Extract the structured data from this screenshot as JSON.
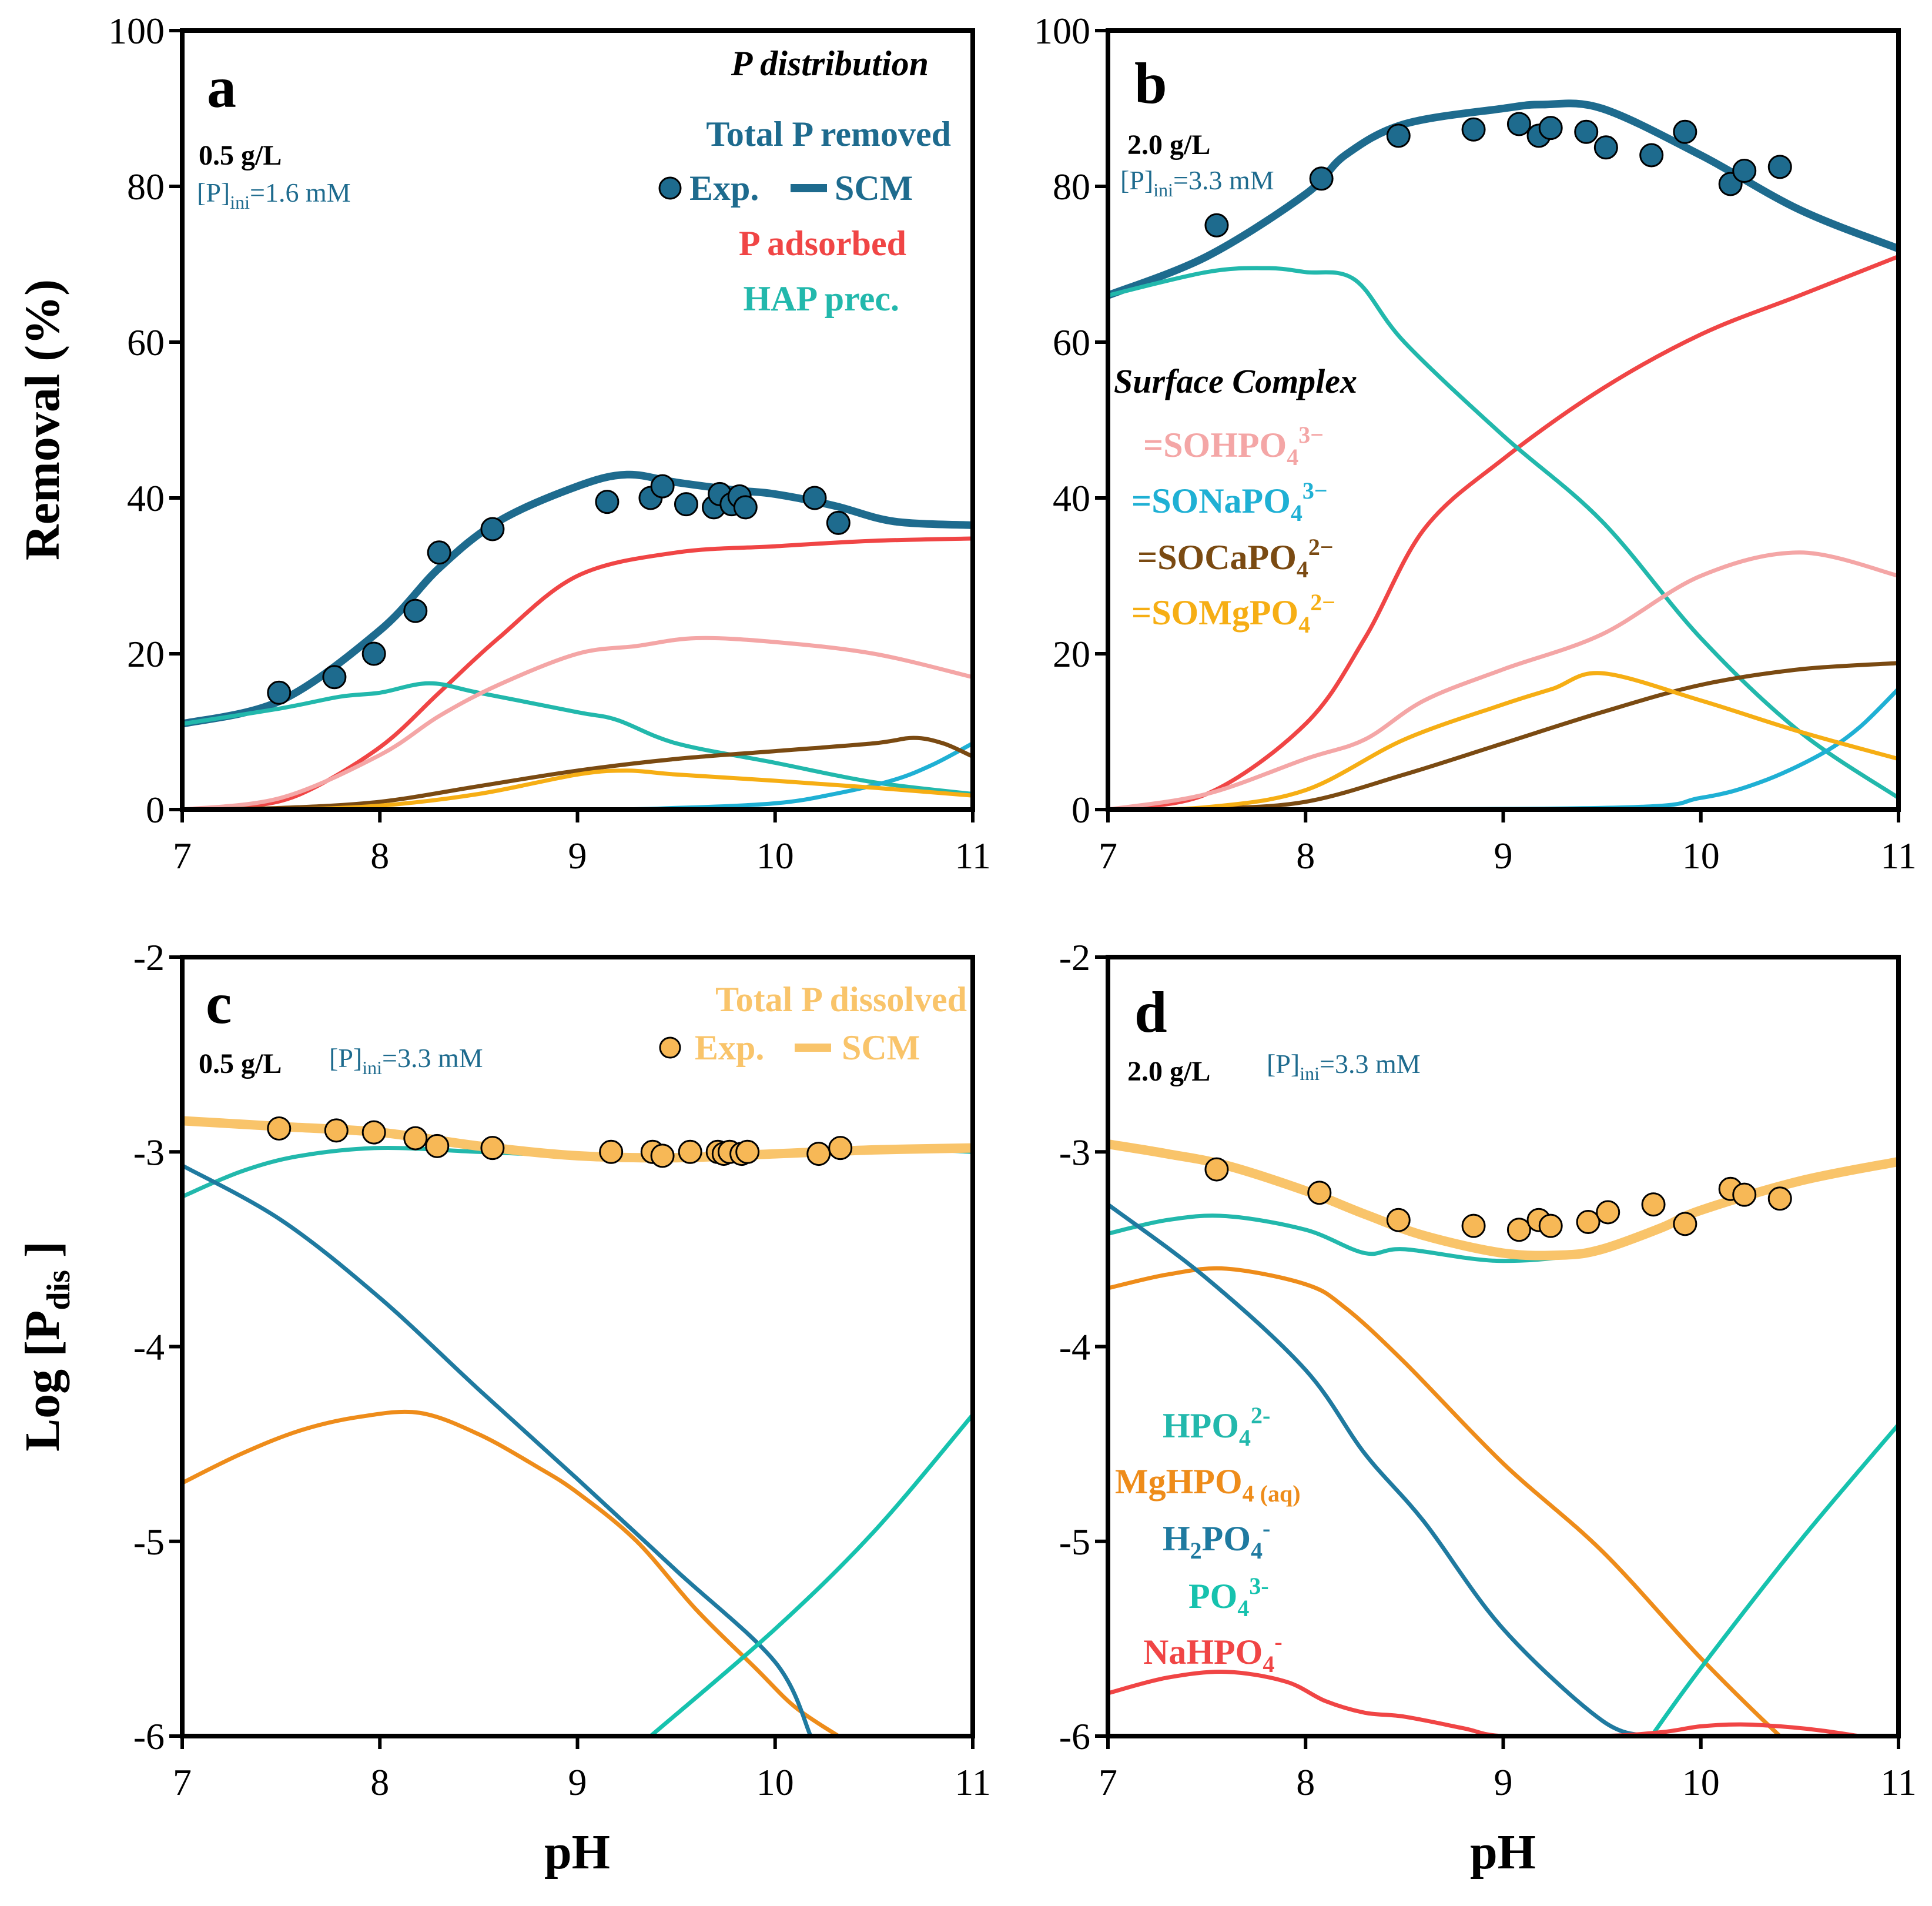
{
  "colors": {
    "total_p": "#1e6b8e",
    "adsorbed": "#f04545",
    "hap": "#22b8ac",
    "sohpo4": "#f4a6a6",
    "sonapo4": "#1fb0d4",
    "socapo4": "#7a4a12",
    "somgpo4": "#f6ae14",
    "dissolved": "#f9c46a",
    "dissolved_marker": "#f7b856",
    "hpo4": "#22b8ac",
    "mghpo4": "#ee8c1a",
    "h2po4": "#1f7aa0",
    "po4": "#16c2ae",
    "nahpo4": "#f04545",
    "ini_text": "#1e6b8e"
  },
  "labels": {
    "removal_axis": "Removal (%)",
    "log_axis_main": "Log [P",
    "log_axis_sub": "dis",
    "log_axis_end": " ]",
    "ph_axis": "pH",
    "pdist_title": "P distribution",
    "total_removed": "Total P removed",
    "exp": "Exp.",
    "scm": "SCM",
    "p_adsorbed": "P adsorbed",
    "hap_prec": "HAP prec.",
    "surface_complex": "Surface Complex",
    "sc1_a": "=SOHPO",
    "sc1_b": "4",
    "sc1_c": "3−",
    "sc2_a": "=SONaPO",
    "sc2_b": "4",
    "sc2_c": "3−",
    "sc3_a": "=SOCaPO",
    "sc3_b": "4",
    "sc3_c": "2−",
    "sc4_a": "=SOMgPO",
    "sc4_b": "4",
    "sc4_c": "2−",
    "total_dissolved": "Total P dissolved",
    "sp1_a": "HPO",
    "sp1_b": "4",
    "sp1_c": "2-",
    "sp2_a": "MgHPO",
    "sp2_b": "4 (aq)",
    "sp3_a": "H",
    "sp3_b": "2",
    "sp3_c": "PO",
    "sp3_d": "4",
    "sp3_e": "-",
    "sp4_a": "PO",
    "sp4_b": "4",
    "sp4_c": "3-",
    "sp5_a": "NaHPO",
    "sp5_b": "4",
    "sp5_c": "-",
    "ini_p": "[P]",
    "ini_sub": "ini"
  },
  "chart_data": [
    {
      "id": "a",
      "type": "line",
      "letter": "a",
      "dose": "0.5 g/L",
      "p_ini_value": "=1.6 mM",
      "xlabel": "",
      "ylabel": "Removal (%)",
      "xlim": [
        7,
        11
      ],
      "ylim": [
        0,
        100
      ],
      "xticks": [
        "7",
        "8",
        "9",
        "10",
        "11"
      ],
      "yticks": [
        "0",
        "20",
        "40",
        "60",
        "80",
        "100"
      ],
      "series": [
        {
          "name": "Total P removed SCM",
          "color_key": "total_p",
          "width": 13,
          "x": [
            7.0,
            7.5,
            8.0,
            8.3,
            8.6,
            9.0,
            9.25,
            9.5,
            9.8,
            10.0,
            10.3,
            10.6,
            11.0
          ],
          "y": [
            11,
            14,
            23,
            31,
            37,
            41.5,
            43,
            42,
            41,
            40.5,
            39,
            37,
            36.5
          ]
        },
        {
          "name": "P adsorbed",
          "color_key": "adsorbed",
          "width": 7,
          "x": [
            7.0,
            7.3,
            7.6,
            8.0,
            8.3,
            8.6,
            9.0,
            9.5,
            10.0,
            10.5,
            11.0
          ],
          "y": [
            0,
            0.3,
            2,
            8,
            15,
            22,
            30,
            33,
            33.8,
            34.5,
            34.8
          ]
        },
        {
          "name": "HAP prec.",
          "color_key": "hap",
          "width": 7,
          "x": [
            7.0,
            7.5,
            7.8,
            8.0,
            8.25,
            8.5,
            9.0,
            9.2,
            9.5,
            10.0,
            10.5,
            11.0
          ],
          "y": [
            11,
            13,
            14.5,
            15,
            16.2,
            15,
            12.5,
            11.5,
            8.5,
            6,
            3.5,
            2
          ]
        },
        {
          "name": "=SOHPO4 3-",
          "color_key": "sohpo4",
          "width": 7,
          "x": [
            7.0,
            7.5,
            8.0,
            8.3,
            8.6,
            9.0,
            9.3,
            9.6,
            10.0,
            10.5,
            11.0
          ],
          "y": [
            0,
            1.5,
            7,
            12,
            16,
            20,
            21,
            22,
            21.5,
            20,
            17
          ]
        },
        {
          "name": "=SONaPO4 3-",
          "color_key": "sonapo4",
          "width": 7,
          "x": [
            7.0,
            9.0,
            9.5,
            10.0,
            10.3,
            10.6,
            10.8,
            11.0
          ],
          "y": [
            0,
            0,
            0.2,
            0.8,
            2,
            3.8,
            5.8,
            8.5
          ]
        },
        {
          "name": "=SOCaPO4 2-",
          "color_key": "socapo4",
          "width": 7,
          "x": [
            7.0,
            7.5,
            8.0,
            8.5,
            9.0,
            9.5,
            10.0,
            10.5,
            10.7,
            10.85,
            11.0
          ],
          "y": [
            0,
            0.2,
            1,
            3,
            5,
            6.5,
            7.5,
            8.5,
            9.2,
            8.5,
            6.8
          ]
        },
        {
          "name": "=SOMgPO4 2-",
          "color_key": "somgpo4",
          "width": 7,
          "x": [
            7.0,
            7.5,
            8.0,
            8.5,
            9.0,
            9.25,
            9.5,
            10.0,
            10.5,
            11.0
          ],
          "y": [
            0,
            0,
            0.5,
            2,
            4.5,
            5,
            4.5,
            3.7,
            2.8,
            1.8
          ]
        }
      ],
      "points": {
        "name": "Exp.",
        "color_key": "total_p",
        "x": [
          7.49,
          7.77,
          7.97,
          8.18,
          8.3,
          8.57,
          9.15,
          9.37,
          9.43,
          9.55,
          9.69,
          9.72,
          9.78,
          9.82,
          9.85,
          10.2,
          10.32
        ],
        "y": [
          15,
          17,
          20,
          25.5,
          33,
          36,
          39.5,
          40,
          41.5,
          39.2,
          38.8,
          40.5,
          39.2,
          40.2,
          38.8,
          40,
          36.8
        ]
      }
    },
    {
      "id": "b",
      "type": "line",
      "letter": "b",
      "dose": "2.0 g/L",
      "p_ini_value": "=3.3 mM",
      "xlabel": "",
      "ylabel": "",
      "xlim": [
        7,
        11
      ],
      "ylim": [
        0,
        100
      ],
      "xticks": [
        "7",
        "8",
        "9",
        "10",
        "11"
      ],
      "yticks": [
        "0",
        "20",
        "40",
        "60",
        "80",
        "100"
      ],
      "series": [
        {
          "name": "Total P removed SCM",
          "color_key": "total_p",
          "width": 13,
          "x": [
            7.0,
            7.5,
            8.0,
            8.2,
            8.5,
            9.0,
            9.2,
            9.5,
            10.0,
            10.5,
            11.0
          ],
          "y": [
            66,
            71,
            79,
            84,
            88,
            90,
            90.5,
            90,
            84,
            77,
            72
          ]
        },
        {
          "name": "P adsorbed",
          "color_key": "adsorbed",
          "width": 7,
          "x": [
            7.0,
            7.5,
            8.0,
            8.3,
            8.6,
            9.0,
            9.5,
            10.0,
            10.5,
            11.0
          ],
          "y": [
            0,
            2,
            11,
            22,
            36,
            45,
            54,
            61,
            66,
            71
          ]
        },
        {
          "name": "HAP prec.",
          "color_key": "hap",
          "width": 7,
          "x": [
            7.0,
            7.5,
            7.8,
            8.0,
            8.25,
            8.5,
            9.0,
            9.5,
            10.0,
            10.5,
            11.0
          ],
          "y": [
            66,
            69,
            69.5,
            69,
            68,
            60,
            48,
            37,
            22,
            10,
            1.5
          ]
        },
        {
          "name": "=SOHPO4 3-",
          "color_key": "sohpo4",
          "width": 7,
          "x": [
            7.0,
            7.5,
            8.0,
            8.3,
            8.6,
            9.0,
            9.5,
            10.0,
            10.5,
            11.0
          ],
          "y": [
            0,
            2,
            6.5,
            9,
            14,
            18,
            22.5,
            30,
            33,
            30
          ]
        },
        {
          "name": "=SONaPO4 3-",
          "color_key": "sonapo4",
          "width": 7,
          "x": [
            7.0,
            9.5,
            10.0,
            10.3,
            10.6,
            10.8,
            11.0
          ],
          "y": [
            0,
            0.2,
            1.5,
            3.5,
            7,
            10.5,
            15.5
          ]
        },
        {
          "name": "=SOCaPO4 2-",
          "color_key": "socapo4",
          "width": 7,
          "x": [
            7.0,
            7.5,
            8.0,
            8.5,
            9.0,
            9.5,
            10.0,
            10.5,
            11.0
          ],
          "y": [
            0,
            0.1,
            1,
            4.5,
            8.5,
            12.5,
            16,
            18,
            18.8
          ]
        },
        {
          "name": "=SOMgPO4 2-",
          "color_key": "somgpo4",
          "width": 7,
          "x": [
            7.0,
            7.5,
            8.0,
            8.5,
            9.0,
            9.25,
            9.5,
            10.0,
            10.5,
            11.0
          ],
          "y": [
            0,
            0.3,
            2.5,
            9,
            13.5,
            15.5,
            17.5,
            14,
            10,
            6.5
          ]
        }
      ],
      "points": {
        "name": "Exp.",
        "color_key": "total_p",
        "x": [
          7.55,
          8.08,
          8.47,
          8.85,
          9.08,
          9.18,
          9.24,
          9.42,
          9.52,
          9.75,
          9.92,
          10.15,
          10.22,
          10.4
        ],
        "y": [
          75,
          81,
          86.5,
          87.3,
          88,
          86.5,
          87.5,
          87,
          85,
          84,
          87,
          80.3,
          82,
          82.5
        ]
      }
    },
    {
      "id": "c",
      "type": "line",
      "letter": "c",
      "dose": "0.5 g/L",
      "p_ini_value": "=3.3 mM",
      "xlabel": "pH",
      "ylabel": "Log [Pdis ]",
      "xlim": [
        7,
        11
      ],
      "ylim": [
        -6,
        -2
      ],
      "xticks": [
        "7",
        "8",
        "9",
        "10",
        "11"
      ],
      "yticks": [
        "-6",
        "-5",
        "-4",
        "-3",
        "-2"
      ],
      "series": [
        {
          "name": "HPO4 2-",
          "color_key": "hpo4",
          "width": 7,
          "x": [
            7.0,
            7.3,
            7.6,
            8.0,
            8.5,
            9.0,
            9.5,
            10.0,
            10.5,
            11.0
          ],
          "y": [
            -3.23,
            -3.1,
            -3.02,
            -2.98,
            -3.0,
            -3.02,
            -3.03,
            -3.0,
            -2.98,
            -3.0
          ]
        },
        {
          "name": "MgHPO4 (aq)",
          "color_key": "mghpo4",
          "width": 7,
          "x": [
            7.0,
            7.3,
            7.6,
            7.9,
            8.2,
            8.5,
            8.8,
            9.0,
            9.3,
            9.6,
            9.9,
            10.1,
            10.32
          ],
          "y": [
            -4.7,
            -4.55,
            -4.43,
            -4.36,
            -4.34,
            -4.45,
            -4.62,
            -4.75,
            -5.0,
            -5.35,
            -5.65,
            -5.85,
            -6.0
          ]
        },
        {
          "name": "H2PO4 -",
          "color_key": "h2po4",
          "width": 7,
          "x": [
            7.0,
            7.5,
            8.0,
            8.5,
            9.0,
            9.5,
            10.0,
            10.18
          ],
          "y": [
            -3.07,
            -3.35,
            -3.75,
            -4.22,
            -4.68,
            -5.15,
            -5.62,
            -6.0
          ]
        },
        {
          "name": "PO4 3-",
          "color_key": "po4",
          "width": 7,
          "x": [
            9.37,
            10.0,
            10.5,
            11.0
          ],
          "y": [
            -6.0,
            -5.45,
            -4.95,
            -4.35
          ]
        },
        {
          "name": "Total P dissolved SCM",
          "color_key": "dissolved",
          "width": 16,
          "x": [
            7.0,
            7.5,
            8.0,
            8.5,
            9.0,
            9.5,
            10.0,
            10.5,
            11.0
          ],
          "y": [
            -2.84,
            -2.87,
            -2.9,
            -2.97,
            -3.02,
            -3.03,
            -3.01,
            -2.99,
            -2.98
          ]
        }
      ],
      "points": {
        "name": "Exp.",
        "color_key": "dissolved_marker",
        "x": [
          7.49,
          7.78,
          7.97,
          8.18,
          8.29,
          8.57,
          9.17,
          9.38,
          9.43,
          9.57,
          9.71,
          9.74,
          9.77,
          9.83,
          9.86,
          10.22,
          10.33
        ],
        "y": [
          -2.88,
          -2.89,
          -2.9,
          -2.93,
          -2.97,
          -2.98,
          -3.0,
          -3.0,
          -3.02,
          -3.0,
          -3.0,
          -3.01,
          -3.0,
          -3.01,
          -3.0,
          -3.01,
          -2.98
        ]
      }
    },
    {
      "id": "d",
      "type": "line",
      "letter": "d",
      "dose": "2.0 g/L",
      "p_ini_value": "=3.3 mM",
      "xlabel": "pH",
      "ylabel": "",
      "xlim": [
        7,
        11
      ],
      "ylim": [
        -6,
        -2
      ],
      "xticks": [
        "7",
        "8",
        "9",
        "10",
        "11"
      ],
      "yticks": [
        "-6",
        "-5",
        "-4",
        "-3",
        "-2"
      ],
      "series": [
        {
          "name": "HPO4 2-",
          "color_key": "hpo4",
          "width": 7,
          "x": [
            7.0,
            7.3,
            7.6,
            8.0,
            8.3,
            8.5,
            9.0,
            9.5,
            10.0,
            10.5,
            11.0
          ],
          "y": [
            -3.42,
            -3.35,
            -3.33,
            -3.4,
            -3.52,
            -3.5,
            -3.56,
            -3.5,
            -3.3,
            -3.15,
            -3.05
          ]
        },
        {
          "name": "MgHPO4 (aq)",
          "color_key": "mghpo4",
          "width": 7,
          "x": [
            7.0,
            7.3,
            7.6,
            8.0,
            8.2,
            8.5,
            9.0,
            9.5,
            10.0,
            10.4,
            10.42
          ],
          "y": [
            -3.7,
            -3.63,
            -3.6,
            -3.68,
            -3.8,
            -4.08,
            -4.6,
            -5.05,
            -5.6,
            -6.0,
            -6.0
          ]
        },
        {
          "name": "H2PO4 -",
          "color_key": "h2po4",
          "width": 7,
          "x": [
            7.0,
            7.5,
            8.0,
            8.3,
            8.6,
            9.0,
            9.5,
            9.75
          ],
          "y": [
            -3.27,
            -3.65,
            -4.12,
            -4.55,
            -4.9,
            -5.45,
            -5.92,
            -6.0
          ]
        },
        {
          "name": "PO4 3-",
          "color_key": "po4",
          "width": 7,
          "x": [
            9.75,
            10.0,
            10.5,
            11.0
          ],
          "y": [
            -6.0,
            -5.65,
            -5.0,
            -4.4
          ]
        },
        {
          "name": "NaHPO4 -",
          "color_key": "nahpo4",
          "width": 7,
          "x": [
            7.0,
            7.3,
            7.6,
            7.9,
            8.1,
            8.3,
            8.5,
            8.8,
            9.0,
            9.5,
            9.8,
            10.0,
            10.2,
            10.4,
            10.6,
            10.8
          ],
          "y": [
            -5.78,
            -5.7,
            -5.67,
            -5.72,
            -5.82,
            -5.88,
            -5.9,
            -5.96,
            -6.0,
            -6.0,
            -5.98,
            -5.95,
            -5.94,
            -5.95,
            -5.97,
            -6.0
          ]
        },
        {
          "name": "Total P dissolved SCM",
          "color_key": "dissolved",
          "width": 16,
          "x": [
            7.0,
            7.3,
            7.6,
            8.0,
            8.3,
            8.6,
            9.0,
            9.3,
            9.5,
            9.8,
            10.0,
            10.5,
            11.0
          ],
          "y": [
            -2.96,
            -3.01,
            -3.07,
            -3.2,
            -3.32,
            -3.43,
            -3.52,
            -3.53,
            -3.5,
            -3.39,
            -3.3,
            -3.15,
            -3.05
          ]
        }
      ],
      "points": {
        "name": "Exp.",
        "color_key": "dissolved_marker",
        "x": [
          7.55,
          8.07,
          8.47,
          8.85,
          9.08,
          9.18,
          9.24,
          9.43,
          9.53,
          9.76,
          9.92,
          10.15,
          10.22,
          10.4
        ],
        "y": [
          -3.09,
          -3.21,
          -3.35,
          -3.38,
          -3.4,
          -3.35,
          -3.38,
          -3.36,
          -3.31,
          -3.27,
          -3.37,
          -3.19,
          -3.22,
          -3.24
        ]
      }
    }
  ]
}
